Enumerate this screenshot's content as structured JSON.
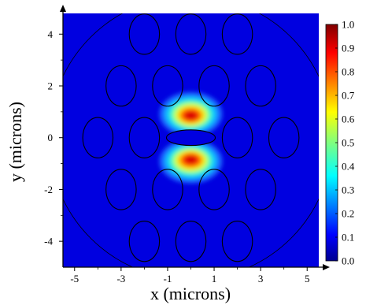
{
  "chart_data": {
    "type": "heatmap",
    "title": "",
    "xlabel": "x (microns)",
    "ylabel": "y (microns)",
    "xlim": [
      -5.5,
      5.5
    ],
    "ylim": [
      -5.0,
      4.8
    ],
    "x_ticks": [
      "-5",
      "-3",
      "-1",
      "1",
      "3",
      "5"
    ],
    "y_ticks": [
      "4",
      "2",
      "0",
      "-2",
      "-4"
    ],
    "x_tick_values": [
      -5,
      -3,
      -1,
      1,
      3,
      5
    ],
    "y_tick_values": [
      4,
      2,
      0,
      -2,
      -4
    ],
    "colorbar": {
      "min": 0.0,
      "max": 1.0,
      "ticks": [
        "1.0",
        "0.9",
        "0.8",
        "0.7",
        "0.6",
        "0.5",
        "0.4",
        "0.3",
        "0.2",
        "0.1",
        "0.0"
      ],
      "tick_values": [
        1.0,
        0.9,
        0.8,
        0.7,
        0.6,
        0.5,
        0.4,
        0.3,
        0.2,
        0.1,
        0.0
      ],
      "colormap": "jet"
    },
    "field_peaks": [
      {
        "x": 0.0,
        "y": 0.85,
        "value": 1.0
      },
      {
        "x": 0.0,
        "y": -0.85,
        "value": 1.0
      }
    ],
    "air_holes": {
      "rx": 0.65,
      "ry": 0.78,
      "centers": [
        [
          -2,
          4
        ],
        [
          0,
          4
        ],
        [
          2,
          4
        ],
        [
          -3,
          2
        ],
        [
          -1,
          2
        ],
        [
          1,
          2
        ],
        [
          3,
          2
        ],
        [
          -4,
          0
        ],
        [
          -2,
          0
        ],
        [
          2,
          0
        ],
        [
          4,
          0
        ],
        [
          -3,
          -2
        ],
        [
          -1,
          -2
        ],
        [
          1,
          -2
        ],
        [
          3,
          -2
        ],
        [
          -2,
          -4
        ],
        [
          0,
          -4
        ],
        [
          2,
          -4
        ]
      ],
      "central_hole": {
        "x": 0,
        "y": 0,
        "rx": 1.05,
        "ry": 0.3
      }
    },
    "cladding_radius": 6.1,
    "background_color": "#0000e0",
    "hole_line_color": "#000000"
  }
}
